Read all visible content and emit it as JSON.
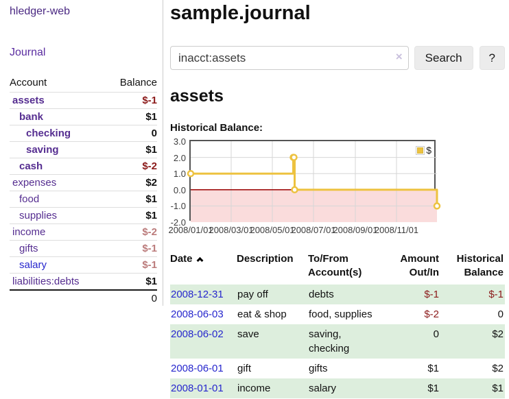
{
  "app": {
    "brand": "hledger-web"
  },
  "colors": {
    "link_purple": "#552d90",
    "link_blue": "#2626cd",
    "negative_strong": "#8b1a1a",
    "negative_light": "#bb7b7b",
    "row_stripe_green": "#ddeedd",
    "chart_series_yellow": "#edc240",
    "chart_negative_region": "#fadcdc",
    "chart_zero_line": "#990000"
  },
  "sidebar": {
    "journal_link": "Journal",
    "accounts": {
      "headers": {
        "account": "Account",
        "balance": "Balance"
      },
      "rows": [
        {
          "account": "assets",
          "balance": "$-1",
          "indent": 1,
          "bold": true,
          "balance_color": "negative-strong"
        },
        {
          "account": "bank",
          "balance": "$1",
          "indent": 2,
          "bold": true,
          "balance_color": "normal"
        },
        {
          "account": "checking",
          "balance": "0",
          "indent": 3,
          "bold": true,
          "balance_color": "normal"
        },
        {
          "account": "saving",
          "balance": "$1",
          "indent": 3,
          "bold": true,
          "balance_color": "normal"
        },
        {
          "account": "cash",
          "balance": "$-2",
          "indent": 2,
          "bold": true,
          "balance_color": "negative-strong"
        },
        {
          "account": "expenses",
          "balance": "$2",
          "indent": 1,
          "bold": false,
          "balance_color": "normal"
        },
        {
          "account": "food",
          "balance": "$1",
          "indent": 2,
          "bold": false,
          "balance_color": "normal"
        },
        {
          "account": "supplies",
          "balance": "$1",
          "indent": 2,
          "bold": false,
          "balance_color": "normal"
        },
        {
          "account": "income",
          "balance": "$-2",
          "indent": 1,
          "bold": false,
          "balance_color": "negative-light"
        },
        {
          "account": "gifts",
          "balance": "$-1",
          "indent": 2,
          "bold": false,
          "balance_color": "negative-light"
        },
        {
          "account": "salary",
          "balance": "$-1",
          "indent": 2,
          "bold": false,
          "balance_color": "negative-light",
          "link_color": "blue"
        },
        {
          "account": "liabilities:debts",
          "balance": "$1",
          "indent": 1,
          "bold": false,
          "balance_color": "normal"
        }
      ],
      "total": "0"
    }
  },
  "main": {
    "title": "sample.journal",
    "search": {
      "value": "inacct:assets",
      "clear_icon": "×",
      "search_button": "Search",
      "help_button": "?"
    },
    "register": {
      "heading": "assets",
      "chart_title": "Historical Balance:",
      "table": {
        "headers": {
          "date": "Date",
          "description": "Description",
          "accounts": "To/From Account(s)",
          "amount": "Amount Out/In",
          "balance": "Historical Balance"
        },
        "sort": {
          "column": "date",
          "direction": "ascending",
          "icon": "chevron-up"
        },
        "rows": [
          {
            "date": "2008-12-31",
            "description": "pay off",
            "accounts": "debts",
            "amount": "$-1",
            "balance": "$-1",
            "amount_negative": true,
            "balance_negative": true
          },
          {
            "date": "2008-06-03",
            "description": "eat & shop",
            "accounts": "food, supplies",
            "amount": "$-2",
            "balance": "0",
            "amount_negative": true,
            "balance_negative": false
          },
          {
            "date": "2008-06-02",
            "description": "save",
            "accounts": "saving, checking",
            "amount": "0",
            "balance": "$2",
            "amount_negative": false,
            "balance_negative": false
          },
          {
            "date": "2008-06-01",
            "description": "gift",
            "accounts": "gifts",
            "amount": "$1",
            "balance": "$2",
            "amount_negative": false,
            "balance_negative": false
          },
          {
            "date": "2008-01-01",
            "description": "income",
            "accounts": "salary",
            "amount": "$1",
            "balance": "$1",
            "amount_negative": false,
            "balance_negative": false
          }
        ]
      }
    }
  },
  "chart_data": {
    "type": "line",
    "step": true,
    "title": "Historical Balance",
    "series": [
      {
        "name": "$",
        "color": "#edc240",
        "points": [
          [
            "2008-01-01",
            1
          ],
          [
            "2008-06-01",
            2
          ],
          [
            "2008-06-02",
            2
          ],
          [
            "2008-06-03",
            0
          ],
          [
            "2008-12-31",
            -1
          ]
        ]
      }
    ],
    "x_start": "2008-01-01",
    "x_end": "2008-12-31",
    "x_ticks": [
      {
        "date": "2008-01-01",
        "label": "2008/01/01"
      },
      {
        "date": "2008-03-01",
        "label": "2008/03/01"
      },
      {
        "date": "2008-05-01",
        "label": "2008/05/01"
      },
      {
        "date": "2008-07-01",
        "label": "2008/07/01"
      },
      {
        "date": "2008-09-01",
        "label": "2008/09/01"
      },
      {
        "date": "2008-11-01",
        "label": "2008/11/01"
      }
    ],
    "y_ticks": [
      {
        "value": 3,
        "label": "3.0"
      },
      {
        "value": 2,
        "label": "2.0"
      },
      {
        "value": 1,
        "label": "1.0"
      },
      {
        "value": 0,
        "label": "0.0"
      },
      {
        "value": -1,
        "label": "-1.0"
      },
      {
        "value": -2,
        "label": "-2.0"
      }
    ],
    "ylim": [
      -2,
      3
    ],
    "grid": true,
    "legend": {
      "label": "$",
      "position": "top-right"
    },
    "negative_region_color": "#fadcdc",
    "zero_line_color": "#990000",
    "grid_color": "#d6d6d6"
  }
}
